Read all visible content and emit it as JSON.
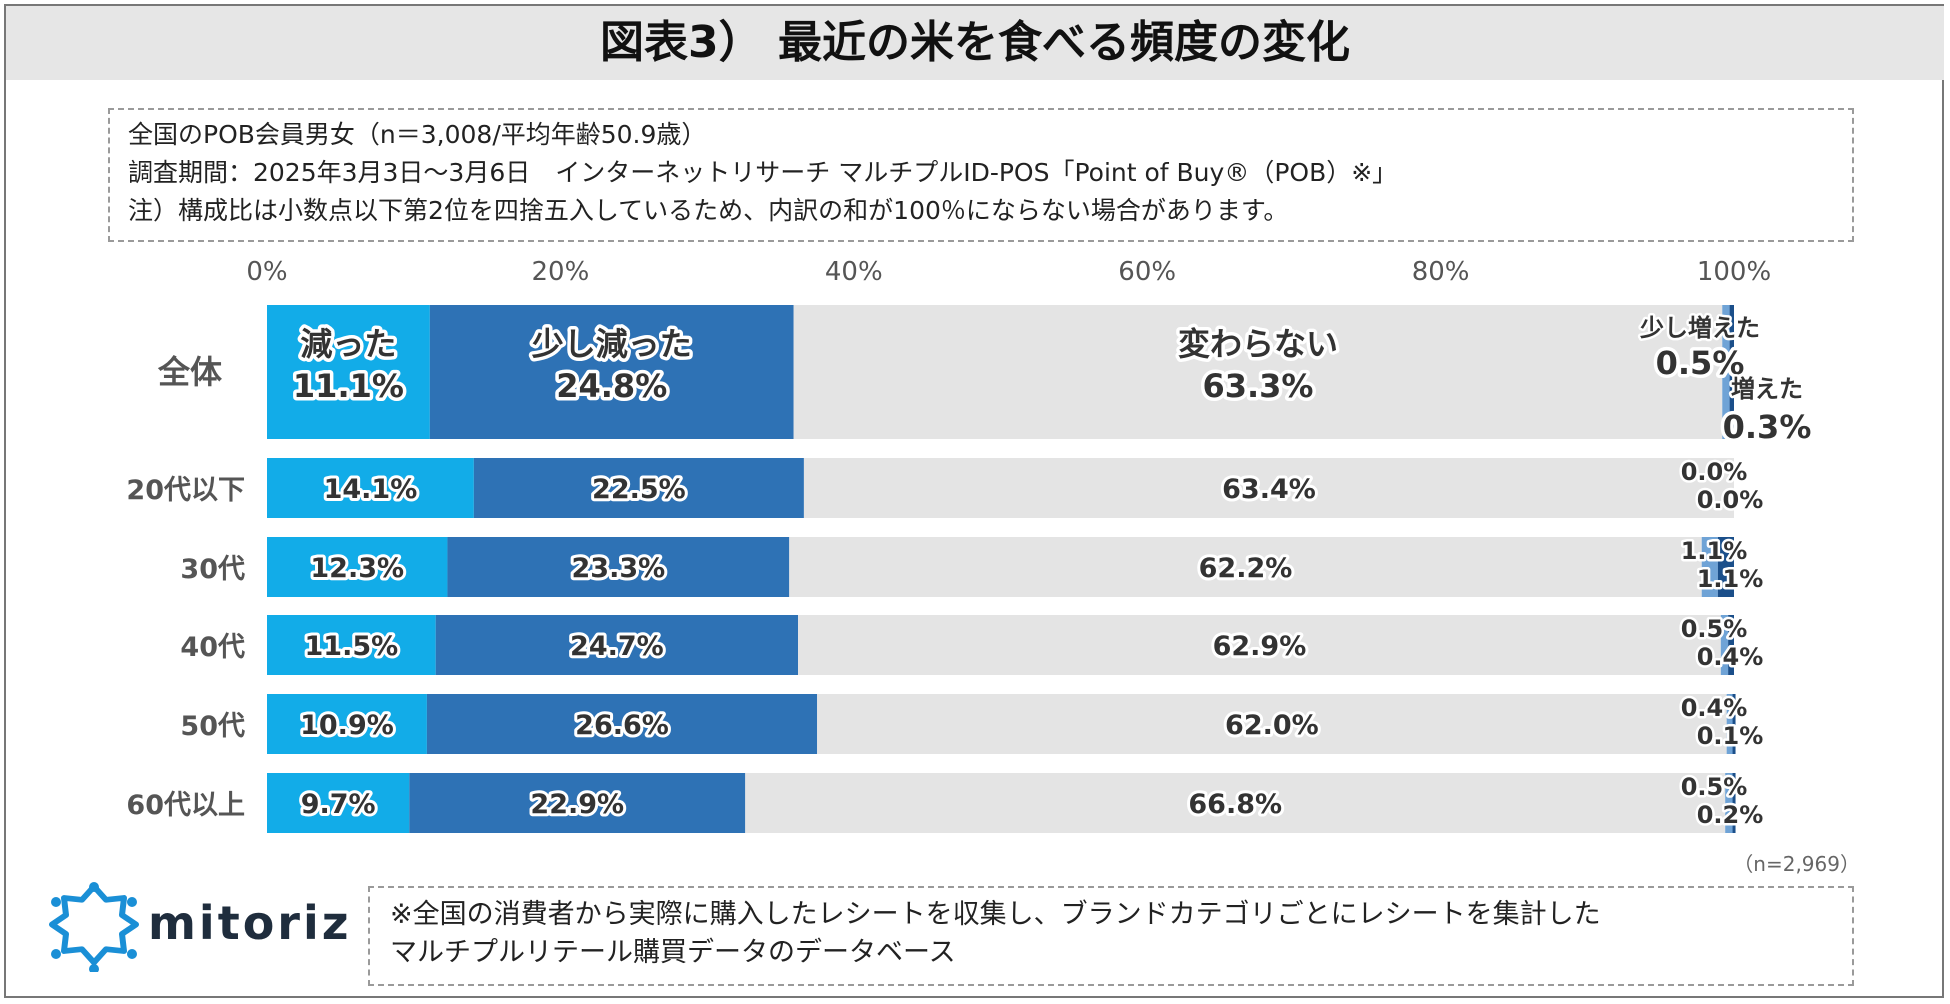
{
  "title": "図表3） 最近の米を食べる頻度の変化",
  "info": {
    "line1": "全国のPOB会員男女（n＝3,008/平均年齢50.9歳）",
    "line2": "調査期間：2025年3月3日～3月6日　インターネットリサーチ マルチプルID-POS「Point of Buy®（POB）※」",
    "line3": "注）構成比は小数点以下第2位を四捨五入しているため、内訳の和が100％にならない場合があります。"
  },
  "sample_note": "（n=2,969）",
  "footnote": {
    "line1": "※全国の消費者から実際に購入したレシートを収集し、ブランドカテゴリごとにレシートを集計した",
    "line2": "マルチプルリテール購買データのデータベース"
  },
  "logo": {
    "text": "mitoriz"
  },
  "colors": {
    "decreased": "#12ace8",
    "slightly_decreased": "#2e72b5",
    "unchanged": "#e4e4e4",
    "slightly_increased": "#6fa3d6",
    "increased": "#1b4f8a"
  },
  "chart_data": {
    "type": "bar",
    "orientation": "horizontal",
    "stacked": true,
    "xlim": [
      0,
      100
    ],
    "xticks": [
      "0%",
      "20%",
      "40%",
      "60%",
      "80%",
      "100%"
    ],
    "categories": [
      "全体",
      "20代以下",
      "30代",
      "40代",
      "50代",
      "60代以上"
    ],
    "series": [
      {
        "name": "減った",
        "values": [
          11.1,
          14.1,
          12.3,
          11.5,
          10.9,
          9.7
        ],
        "labels": [
          "11.1%",
          "14.1%",
          "12.3%",
          "11.5%",
          "10.9%",
          "9.7%"
        ]
      },
      {
        "name": "少し減った",
        "values": [
          24.8,
          22.5,
          23.3,
          24.7,
          26.6,
          22.9
        ],
        "labels": [
          "24.8%",
          "22.5%",
          "23.3%",
          "24.7%",
          "26.6%",
          "22.9%"
        ]
      },
      {
        "name": "変わらない",
        "values": [
          63.3,
          63.4,
          62.2,
          62.9,
          62.0,
          66.8
        ],
        "labels": [
          "63.3%",
          "63.4%",
          "62.2%",
          "62.9%",
          "62.0%",
          "66.8%"
        ]
      },
      {
        "name": "少し増えた",
        "values": [
          0.5,
          0.0,
          1.1,
          0.5,
          0.4,
          0.5
        ],
        "labels": [
          "0.5%",
          "0.0%",
          "1.1%",
          "0.5%",
          "0.4%",
          "0.5%"
        ]
      },
      {
        "name": "増えた",
        "values": [
          0.3,
          0.0,
          1.1,
          0.4,
          0.1,
          0.2
        ],
        "labels": [
          "0.3%",
          "0.0%",
          "1.1%",
          "0.4%",
          "0.1%",
          "0.2%"
        ]
      }
    ]
  }
}
